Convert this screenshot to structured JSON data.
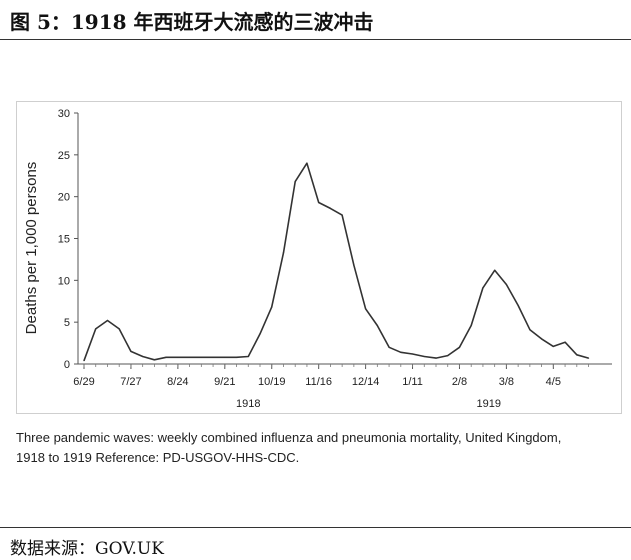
{
  "figure": {
    "title": "图 5：1918 年西班牙大流感的三波冲击",
    "caption_line1": "Three pandemic waves: weekly combined influenza and pneumonia mortality, United Kingdom,",
    "caption_line2": "1918 to 1919 Reference: PD-USGOV-HHS-CDC.",
    "source": "数据来源：GOV.UK"
  },
  "chart_data": {
    "type": "line",
    "title": "",
    "xlabel": "",
    "ylabel": "Deaths per 1,000 persons",
    "ylim": [
      0,
      30
    ],
    "yticks": [
      0,
      5,
      10,
      15,
      20,
      25,
      30
    ],
    "xlim": [
      0,
      45
    ],
    "xticks": [
      {
        "x": 0,
        "label": "6/29"
      },
      {
        "x": 4,
        "label": "7/27"
      },
      {
        "x": 8,
        "label": "8/24"
      },
      {
        "x": 12,
        "label": "9/21"
      },
      {
        "x": 16,
        "label": "10/19"
      },
      {
        "x": 20,
        "label": "11/16"
      },
      {
        "x": 24,
        "label": "12/14"
      },
      {
        "x": 28,
        "label": "1/11"
      },
      {
        "x": 32,
        "label": "2/8"
      },
      {
        "x": 36,
        "label": "3/8"
      },
      {
        "x": 40,
        "label": "4/5"
      }
    ],
    "year_labels": [
      {
        "x": 14,
        "label": "1918"
      },
      {
        "x": 34.5,
        "label": "1919"
      }
    ],
    "grid": false,
    "legend": "none",
    "line_color": "#333333",
    "series": [
      {
        "name": "",
        "x": [
          0,
          1,
          2,
          3,
          4,
          5,
          6,
          7,
          8,
          9,
          10,
          11,
          12,
          13,
          14,
          15,
          16,
          17,
          18,
          19,
          20,
          21,
          22,
          23,
          24,
          25,
          26,
          27,
          28,
          29,
          30,
          31,
          32,
          33,
          34,
          35,
          36,
          37,
          38,
          39,
          40,
          41,
          42,
          43
        ],
        "values": [
          0.4,
          4.2,
          5.2,
          4.2,
          1.5,
          0.9,
          0.5,
          0.8,
          0.8,
          0.8,
          0.8,
          0.8,
          0.8,
          0.8,
          0.9,
          3.6,
          6.8,
          13.3,
          21.8,
          24.0,
          19.3,
          18.6,
          17.8,
          11.8,
          6.6,
          4.6,
          2.0,
          1.4,
          1.2,
          0.9,
          0.7,
          1.0,
          2.0,
          4.6,
          9.1,
          11.2,
          9.5,
          7.0,
          4.1,
          3.0,
          2.1,
          2.6,
          1.1,
          0.7
        ]
      }
    ]
  }
}
